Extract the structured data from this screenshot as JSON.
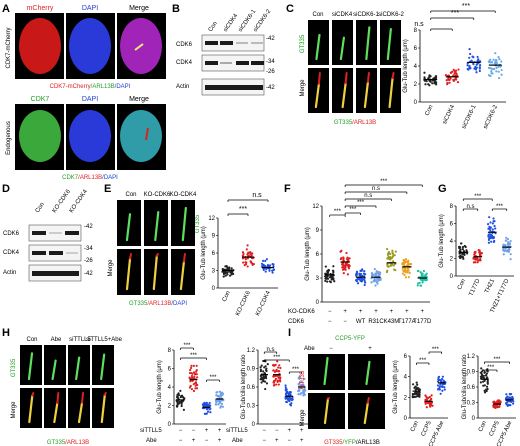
{
  "panels": {
    "A": {
      "letter": "A",
      "col_headers": [
        "mCherry",
        "DAPI",
        "Merge"
      ],
      "row1_label": "CDK7-mCherry",
      "row1_caption": {
        "a": "CDK7-mCherry",
        "b": "/ARL13B",
        "c": "/DAPI"
      },
      "row2_col_headers": [
        "CDK7",
        "DAPI",
        "Merge"
      ],
      "row2_label": "Endogenous",
      "row2_caption": {
        "a": "CDK7",
        "b": "/ARL13B",
        "c": "/DAPI"
      }
    },
    "B": {
      "letter": "B",
      "lanes": [
        "Con",
        "siCDK4",
        "siCDK6-1",
        "siCDK6-2"
      ],
      "rows": [
        "CDK6",
        "CDK4",
        "Actin"
      ],
      "mw": [
        "-42",
        "-34",
        "-26",
        "-42"
      ]
    },
    "C": {
      "letter": "C",
      "img_cols": [
        "Con",
        "siCDK4",
        "siCDK6-1",
        "siCDK6-2"
      ],
      "row_labels": [
        "GT335",
        "Merge"
      ],
      "caption": {
        "a": "GT335",
        "b": "/ARL13B"
      },
      "sig": [
        "n.s",
        "***",
        "***"
      ]
    },
    "D": {
      "letter": "D",
      "lanes": [
        "Con",
        "KO-CDK6",
        "KO-CDK4"
      ],
      "rows": [
        "CDK6",
        "CDK4",
        "Actin"
      ],
      "mw": [
        "-42",
        "-34",
        "-26",
        "-42"
      ]
    },
    "E": {
      "letter": "E",
      "img_cols": [
        "Con",
        "KO-CDK6",
        "KO-CDK4"
      ],
      "row_labels": [
        "GT335",
        "Merge"
      ],
      "caption": {
        "a": "GT335",
        "b": "/ARL13B",
        "c": "/DAPI"
      },
      "sig": [
        "n.s",
        "***"
      ]
    },
    "F": {
      "letter": "F",
      "row_labels": [
        "KO-CDK6",
        "CDK6"
      ],
      "row1_marks": [
        "−",
        "+",
        "+",
        "+",
        "+",
        "+",
        "+"
      ],
      "row2_marks": [
        "−",
        "−",
        "WT",
        "R31C",
        "K43M",
        "T177A",
        "T177D"
      ],
      "sig": [
        "***",
        "***",
        "***",
        "***",
        "n.s",
        "n.s",
        "n.s"
      ]
    },
    "G": {
      "letter": "G",
      "sig": [
        "***",
        "n.s",
        "***"
      ]
    },
    "H": {
      "letter": "H",
      "img_cols": [
        "Con",
        "Abe",
        "siTTLL5",
        "siTTLL5+Abe"
      ],
      "row_labels": [
        "GT335",
        "Merge"
      ],
      "caption": {
        "a": "GT335",
        "b": "/ARL13B"
      },
      "row_siTTLL5": [
        "−",
        "−",
        "+",
        "+"
      ],
      "row_Abe": [
        "−",
        "+",
        "−",
        "+"
      ],
      "row_label_si": "siTTLL5",
      "row_label_abe": "Abe",
      "sig": [
        "***",
        "***",
        "***"
      ]
    },
    "I": {
      "letter": "I",
      "header_ccp5": "CCP5-YFP",
      "header_abe": "Abe",
      "abe_marks": [
        "−",
        "+"
      ],
      "row_labels": [
        "GT335",
        "Merge"
      ],
      "caption": {
        "a": "GT335",
        "b": "/YFP",
        "c": "/ARL13B"
      },
      "sig": [
        "***",
        "***"
      ]
    }
  },
  "chart_data": [
    {
      "panel": "C",
      "type": "scatter",
      "categories": [
        "Con",
        "siCDK4",
        "siCDK6-1",
        "siCDK6-2"
      ],
      "ylabel": "Glu-Tub length (μm)",
      "ylim": [
        0,
        8
      ],
      "yticks": [
        0,
        2,
        4,
        6,
        8
      ],
      "means": [
        2.5,
        2.8,
        4.4,
        4.1
      ],
      "colors": [
        "#222222",
        "#e02020",
        "#2050e0",
        "#6aa8e8"
      ]
    },
    {
      "panel": "E",
      "type": "scatter",
      "categories": [
        "Con",
        "KO-CDK6",
        "KO-CDK4"
      ],
      "ylabel": "Glu-Tub length (μm)",
      "ylim": [
        0,
        12
      ],
      "yticks": [
        0,
        3,
        6,
        9,
        12
      ],
      "means": [
        3.0,
        5.3,
        3.5
      ],
      "colors": [
        "#222222",
        "#e02020",
        "#2050e0"
      ]
    },
    {
      "panel": "F",
      "type": "scatter",
      "categories": [
        "−/−",
        "+/−",
        "+/WT",
        "+/R31C",
        "+/K43M",
        "+/T177A",
        "+/T177D"
      ],
      "ylabel": "Glu-Tub length (μm)",
      "ylim": [
        0,
        12
      ],
      "yticks": [
        0,
        3,
        6,
        9,
        12
      ],
      "means": [
        3.4,
        5.0,
        3.1,
        3.1,
        4.9,
        4.4,
        3.0
      ],
      "colors": [
        "#222222",
        "#e02020",
        "#2050e0",
        "#70a0e8",
        "#9a9a20",
        "#e8a020",
        "#20c0a0"
      ]
    },
    {
      "panel": "G",
      "type": "scatter",
      "categories": [
        "Con",
        "T177D",
        "THZ1",
        "THZ1+T177D"
      ],
      "ylabel": "Glu-Tub length (μm)",
      "ylim": [
        0,
        8
      ],
      "yticks": [
        0,
        2,
        4,
        6,
        8
      ],
      "means": [
        2.7,
        2.2,
        5.0,
        3.3
      ],
      "colors": [
        "#222222",
        "#e02020",
        "#2050e0",
        "#70a0e8"
      ]
    },
    {
      "panel": "H-length",
      "type": "scatter",
      "categories": [
        "−/−",
        "−/+",
        "+/−",
        "+/+"
      ],
      "ylabel": "Glu-Tub length (μm)",
      "ylim": [
        0,
        8
      ],
      "yticks": [
        0,
        2,
        4,
        6,
        8
      ],
      "means": [
        2.6,
        4.8,
        1.8,
        2.7
      ],
      "colors": [
        "#222222",
        "#e02020",
        "#2050e0",
        "#70a0e8"
      ]
    },
    {
      "panel": "H-ratio",
      "type": "scatter",
      "categories": [
        "−/−",
        "−/+",
        "+/−",
        "+/+"
      ],
      "ylabel": "Glu-Tub/cilia length ratio",
      "ylim": [
        0,
        1.2
      ],
      "yticks": [
        0,
        0.3,
        0.6,
        0.9,
        1.2
      ],
      "means": [
        0.8,
        0.8,
        0.45,
        0.6
      ],
      "colors": [
        "#222222",
        "#e02020",
        "#2050e0",
        "#70a0e8"
      ]
    },
    {
      "panel": "I-length",
      "type": "scatter",
      "categories": [
        "Con",
        "CCP5",
        "CCP5 Abe"
      ],
      "ylabel": "Glu-Tub length (μm)",
      "ylim": [
        0,
        6
      ],
      "yticks": [
        0,
        2,
        4,
        6
      ],
      "means": [
        2.6,
        1.6,
        3.4
      ],
      "colors": [
        "#222222",
        "#e02020",
        "#2050e0"
      ]
    },
    {
      "panel": "I-ratio",
      "type": "scatter",
      "categories": [
        "Con",
        "CCP5",
        "CCP5 Abe"
      ],
      "ylabel": "Glu-Tub/cilia length ratio",
      "ylim": [
        0,
        1.2
      ],
      "yticks": [
        0,
        0.3,
        0.6,
        0.9,
        1.2
      ],
      "means": [
        0.75,
        0.27,
        0.35
      ],
      "colors": [
        "#222222",
        "#e02020",
        "#2050e0"
      ]
    }
  ]
}
